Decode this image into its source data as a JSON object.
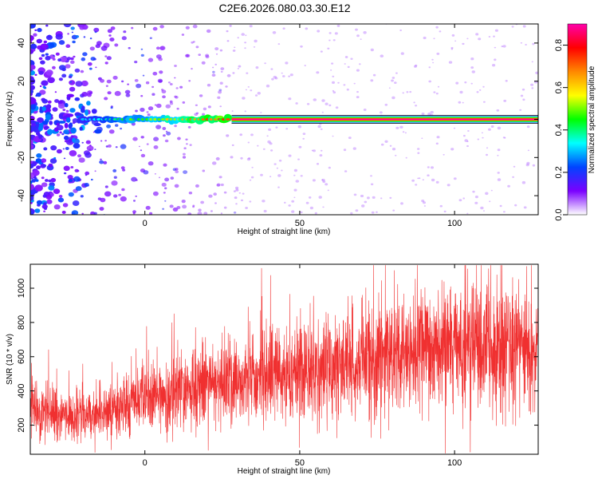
{
  "figure": {
    "title": "C2E6.2026.080.03.30.E12"
  },
  "chart_data": [
    {
      "type": "heatmap",
      "id": "spectrogram",
      "xlabel": "Height of straight line (km)",
      "ylabel": "Frequency (Hz)",
      "xlim": [
        -37,
        127
      ],
      "ylim": [
        -50,
        50
      ],
      "xticks": [
        0,
        50,
        100
      ],
      "yticks": [
        -40,
        -20,
        0,
        20,
        40
      ],
      "colorbar": {
        "label": "Normalized spectral amplitude",
        "range": [
          0.0,
          0.9
        ],
        "ticks": [
          0.0,
          0.2,
          0.4,
          0.6,
          0.8
        ],
        "colors": [
          "#ffffff",
          "#7a00ff",
          "#0044ff",
          "#00ffff",
          "#00ff00",
          "#ffff00",
          "#ff8800",
          "#ff0000",
          "#ff00aa"
        ]
      },
      "ridge": {
        "frequency_hz": 0,
        "x_start": -20,
        "x_end": 127,
        "amplitude_start": 0.3,
        "amplitude_end": 0.9
      }
    },
    {
      "type": "line",
      "id": "snr",
      "xlabel": "Height of straight line (km)",
      "ylabel": "SNR (10 * v/v)",
      "xlim": [
        -37,
        127
      ],
      "ylim": [
        30,
        1140
      ],
      "xticks": [
        0,
        50,
        100
      ],
      "yticks": [
        200,
        400,
        600,
        800,
        1000
      ],
      "series": [
        {
          "color": "#f03030",
          "trend_x": [
            -37,
            -25,
            -15,
            0,
            10,
            20,
            30,
            40,
            50,
            60,
            70,
            80,
            90,
            100,
            110,
            120,
            127
          ],
          "trend_y": [
            300,
            250,
            270,
            350,
            390,
            430,
            460,
            480,
            500,
            540,
            580,
            610,
            630,
            640,
            650,
            660,
            660
          ]
        }
      ]
    }
  ]
}
